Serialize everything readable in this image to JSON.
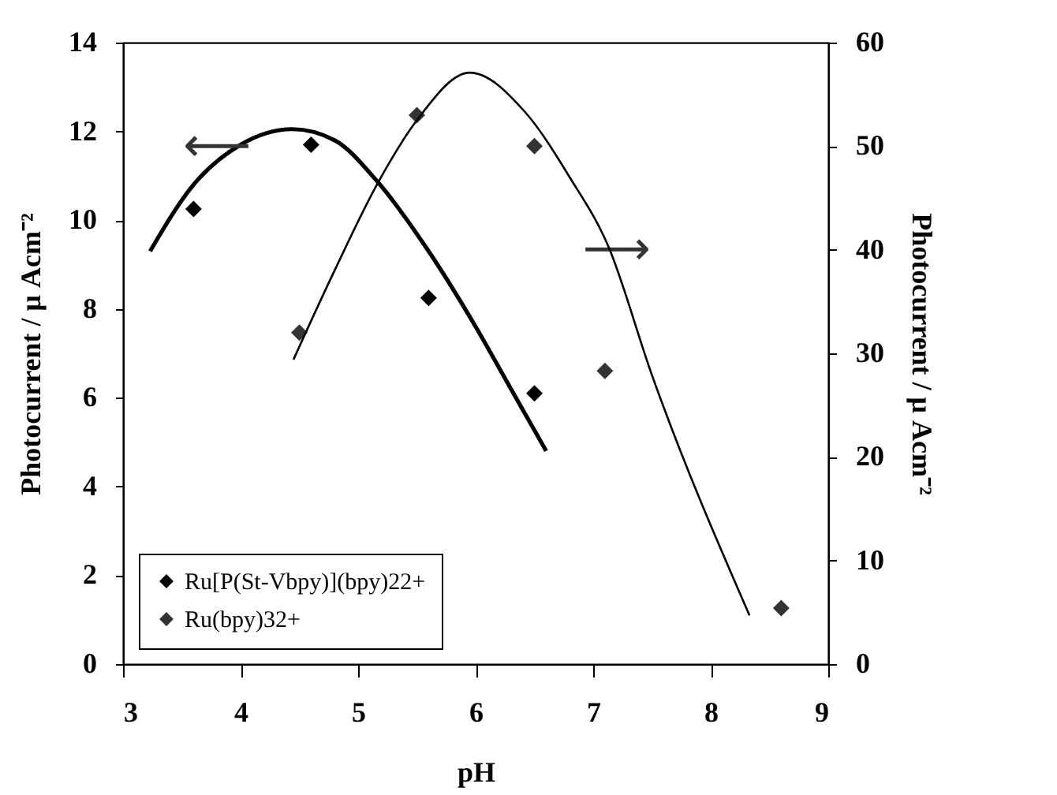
{
  "chart_data": {
    "type": "line",
    "xlabel": "pH",
    "ylabel": "Photocurrent / μ Acm⁻²",
    "y2label": "Photocurrent / μ Acm⁻²",
    "xlim": [
      3,
      9
    ],
    "xticks": [
      3,
      4,
      5,
      6,
      7,
      8,
      9
    ],
    "ylim": [
      0,
      14
    ],
    "yticks": [
      0,
      2,
      4,
      6,
      8,
      10,
      12,
      14
    ],
    "y2lim": [
      0,
      60
    ],
    "y2ticks": [
      0,
      10,
      20,
      30,
      40,
      50,
      60
    ],
    "grid": false,
    "legend": "bottom left",
    "series": [
      {
        "name": "Ru[P(St-Vbpy)](bpy)22+",
        "type": "scatter",
        "marker": "diamond",
        "color": "#000000",
        "x": [
          3.6,
          4.6,
          5.6,
          6.5
        ],
        "values": [
          10.25,
          11.7,
          8.25,
          6.1
        ]
      },
      {
        "color": "#000000",
        "x": [
          3.23,
          3.6,
          4.0,
          4.44,
          4.8,
          5.17,
          5.6,
          6.0,
          6.3,
          6.6
        ],
        "values": [
          9.3,
          10.8,
          11.7,
          12.05,
          11.8,
          10.85,
          9.3,
          7.6,
          6.2,
          4.8
        ]
      },
      {
        "name": "Ru(bpy)32+",
        "type": "scatter",
        "marker": "diamond",
        "axis": "y2",
        "color": "#333333",
        "x": [
          4.5,
          5.5,
          6.5,
          7.1,
          8.6
        ],
        "values": [
          32,
          53,
          50,
          28.3,
          5.4
        ]
      },
      {
        "axis": "y2",
        "color": "#000000",
        "x": [
          4.45,
          4.8,
          5.17,
          5.5,
          5.95,
          6.42,
          6.8,
          7.13,
          7.5,
          8.33
        ],
        "values": [
          29.4,
          38,
          46.5,
          52.5,
          57.1,
          53.3,
          47,
          40.3,
          27.9,
          4.7
        ]
      }
    ],
    "annotations": [
      {
        "text": "⟵",
        "x": 3.8,
        "y": 11.65
      },
      {
        "text": "⟶",
        "x": 7.2,
        "y": 9.33
      }
    ]
  }
}
